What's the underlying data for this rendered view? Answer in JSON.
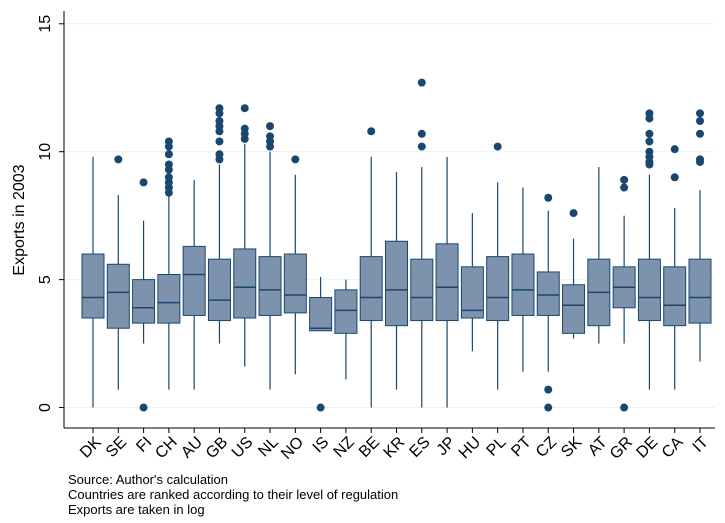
{
  "chart_data": {
    "type": "box",
    "y_label": "Exports in 2003",
    "notes": [
      "Source: Author's calculation",
      "Countries are ranked according to their level of regulation",
      "Exports are taken in log"
    ],
    "categories": [
      "DK",
      "SE",
      "FI",
      "CH",
      "AU",
      "GB",
      "US",
      "NL",
      "NO",
      "IS",
      "NZ",
      "BE",
      "KR",
      "ES",
      "JP",
      "HU",
      "PL",
      "PT",
      "CZ",
      "SK",
      "AT",
      "GR",
      "DE",
      "CA",
      "IT"
    ],
    "whisker_low": [
      0,
      0.7,
      2.5,
      0.7,
      0.7,
      2.5,
      1.6,
      0.7,
      1.3,
      3.0,
      1.1,
      0,
      0.7,
      0,
      0,
      2.2,
      0.7,
      1.4,
      1.4,
      2.7,
      2.5,
      2.5,
      0.7,
      0.7,
      1.8
    ],
    "q1": [
      3.5,
      3.1,
      3.3,
      3.3,
      3.6,
      3.4,
      3.5,
      3.6,
      3.7,
      3.0,
      2.9,
      3.4,
      3.2,
      3.4,
      3.4,
      3.5,
      3.4,
      3.6,
      3.6,
      2.9,
      3.2,
      3.9,
      3.4,
      3.2,
      3.3
    ],
    "median": [
      4.3,
      4.5,
      3.9,
      4.1,
      5.2,
      4.2,
      4.7,
      4.6,
      4.4,
      3.1,
      3.8,
      4.3,
      4.6,
      4.3,
      4.7,
      3.8,
      4.3,
      4.6,
      4.4,
      4.0,
      4.5,
      4.7,
      4.3,
      4.0,
      4.3
    ],
    "q3": [
      6.0,
      5.6,
      5.0,
      5.2,
      6.3,
      5.8,
      6.2,
      5.9,
      6.0,
      4.3,
      4.6,
      5.9,
      6.5,
      5.8,
      6.4,
      5.5,
      5.9,
      6.0,
      5.3,
      4.8,
      5.8,
      5.5,
      5.8,
      5.5,
      5.8
    ],
    "whisker_high": [
      9.8,
      8.3,
      7.3,
      8.3,
      8.9,
      9.5,
      10.3,
      10.0,
      9.1,
      5.1,
      5.0,
      9.8,
      9.2,
      9.4,
      9.8,
      7.6,
      8.8,
      8.6,
      7.7,
      6.6,
      9.4,
      7.5,
      9.1,
      7.8,
      8.5
    ],
    "outliers": [
      [],
      [
        9.7
      ],
      [
        8.8,
        0
      ],
      [
        10.4,
        10.2,
        9.9,
        9.5,
        9.3,
        9.0,
        8.8,
        8.6,
        8.4
      ],
      [],
      [
        11.7,
        11.5,
        11.2,
        11.0,
        10.8,
        10.4,
        9.9,
        9.7
      ],
      [
        11.7,
        10.9,
        10.7,
        10.5
      ],
      [
        11.0,
        10.6,
        10.4,
        10.2
      ],
      [
        9.7
      ],
      [
        0
      ],
      [],
      [
        10.8
      ],
      [],
      [
        12.7,
        10.7,
        10.2
      ],
      [],
      [],
      [
        10.2
      ],
      [],
      [
        8.2,
        0.7,
        0
      ],
      [
        7.6
      ],
      [],
      [
        8.9,
        8.6,
        0
      ],
      [
        11.5,
        11.3,
        10.7,
        10.4,
        10.0,
        9.8,
        9.6,
        9.5
      ],
      [
        10.1,
        9.0
      ],
      [
        11.5,
        11.2,
        10.7,
        9.7,
        9.6
      ]
    ],
    "box_color": "#7d92ad",
    "line_color": "#1a476f",
    "ylim": [
      -0.8,
      15.5
    ],
    "yticks": [
      0,
      5,
      10,
      15
    ],
    "grid": true
  }
}
